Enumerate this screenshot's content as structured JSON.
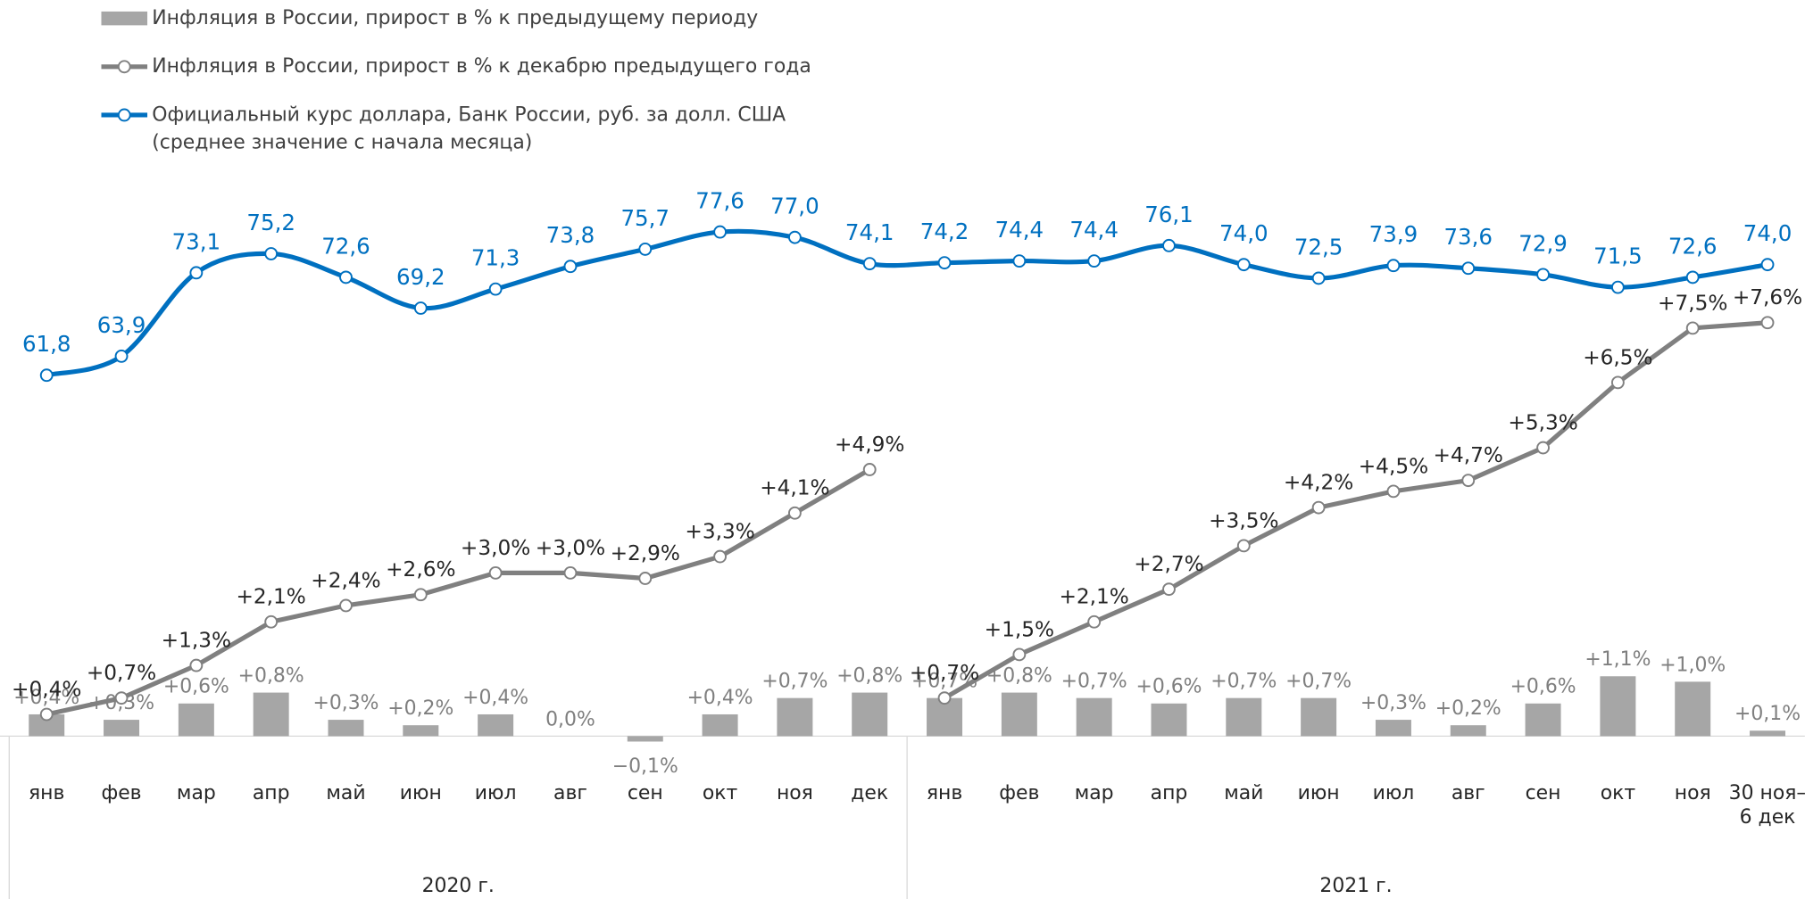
{
  "chart_data": {
    "type": "combo",
    "categories": [
      "янв",
      "фев",
      "мар",
      "апр",
      "май",
      "июн",
      "июл",
      "авг",
      "сен",
      "окт",
      "ноя",
      "дек",
      "янв",
      "фев",
      "мар",
      "апр",
      "май",
      "июн",
      "июл",
      "авг",
      "сен",
      "окт",
      "ноя",
      "30 ноя–\n6 дек"
    ],
    "groups": [
      "2020 г.",
      "2021 г."
    ],
    "ylim": [
      -3,
      10
    ],
    "y2lim": [
      4,
      82
    ],
    "series": [
      {
        "name": "Инфляция в России, прирост в % к предыдущему периоду",
        "type": "bar",
        "color": "#a6a6a6",
        "values": [
          0.4,
          0.3,
          0.6,
          0.8,
          0.3,
          0.2,
          0.4,
          0.0,
          -0.1,
          0.4,
          0.7,
          0.8,
          0.7,
          0.8,
          0.7,
          0.6,
          0.7,
          0.7,
          0.3,
          0.2,
          0.6,
          1.1,
          1.0,
          0.1
        ],
        "value_labels": [
          "+0,4%",
          "+0,3%",
          "+0,6%",
          "+0,8%",
          "+0,3%",
          "+0,2%",
          "+0,4%",
          "0,0%",
          "−0,1%",
          "+0,4%",
          "+0,7%",
          "+0,8%",
          "+0,7%",
          "+0,8%",
          "+0,7%",
          "+0,6%",
          "+0,7%",
          "+0,7%",
          "+0,3%",
          "+0,2%",
          "+0,6%",
          "+1,1%",
          "+1,0%",
          "+0,1%"
        ]
      },
      {
        "name": "Инфляция в России, прирост в % к декабрю предыдущего года",
        "type": "line",
        "color": "#808080",
        "values": [
          0.4,
          0.7,
          1.3,
          2.1,
          2.4,
          2.6,
          3.0,
          3.0,
          2.9,
          3.3,
          4.1,
          4.9,
          0.7,
          1.5,
          2.1,
          2.7,
          3.5,
          4.2,
          4.5,
          4.7,
          5.3,
          6.5,
          7.5,
          7.6
        ],
        "value_labels": [
          "+0,4%",
          "+0,7%",
          "+1,3%",
          "+2,1%",
          "+2,4%",
          "+2,6%",
          "+3,0%",
          "+3,0%",
          "+2,9%",
          "+3,3%",
          "+4,1%",
          "+4,9%",
          "+0,7%",
          "+1,5%",
          "+2,1%",
          "+2,7%",
          "+3,5%",
          "+4,2%",
          "+4,5%",
          "+4,7%",
          "+5,3%",
          "+6,5%",
          "+7,5%",
          "+7,6%"
        ]
      },
      {
        "name": "Официальный курс доллара, Банк России, руб. за долл. США\n(среднее значение с начала месяца)",
        "type": "line",
        "axis": "y2",
        "smooth": true,
        "color": "#0070c0",
        "values": [
          61.8,
          63.9,
          73.1,
          75.2,
          72.6,
          69.2,
          71.3,
          73.8,
          75.7,
          77.6,
          77.0,
          74.1,
          74.2,
          74.4,
          74.4,
          76.1,
          74.0,
          72.5,
          73.9,
          73.6,
          72.9,
          71.5,
          72.6,
          74.0
        ],
        "value_labels": [
          "61,8",
          "63,9",
          "73,1",
          "75,2",
          "72,6",
          "69,2",
          "71,3",
          "73,8",
          "75,7",
          "77,6",
          "77,0",
          "74,1",
          "74,2",
          "74,4",
          "74,4",
          "76,1",
          "74,0",
          "72,5",
          "73,9",
          "73,6",
          "72,9",
          "71,5",
          "72,6",
          "74,0"
        ]
      }
    ]
  }
}
